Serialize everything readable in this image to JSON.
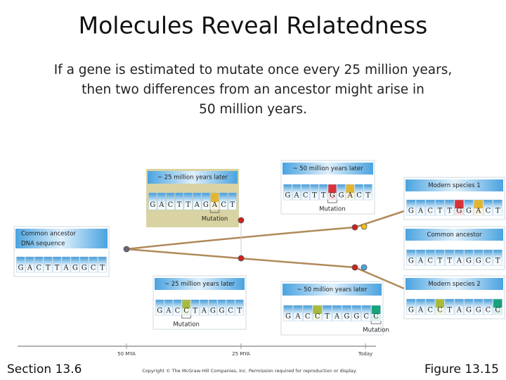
{
  "header": {
    "title": "Molecules Reveal Relatedness",
    "subtitle_lines": [
      "If a gene is estimated to mutate once every 25 million years,",
      "then two differences from an ancestor might arise in",
      "50 million years."
    ]
  },
  "panels": [
    {
      "heading": [
        "~ 25 million years later"
      ],
      "sequence": [
        "G",
        "A",
        "C",
        "T",
        "T",
        "A",
        "G",
        "A",
        "C",
        "T"
      ],
      "mutation": "Mutation"
    },
    {
      "heading": [
        "~ 50 million years later"
      ],
      "sequence": [
        "G",
        "A",
        "C",
        "T",
        "T",
        "G",
        "G",
        "A",
        "C",
        "T"
      ],
      "mutation": "Mutation"
    },
    {
      "heading": [
        "Modern species 1"
      ],
      "sequence": [
        "G",
        "A",
        "C",
        "T",
        "T",
        "G",
        "G",
        "A",
        "C",
        "T"
      ]
    },
    {
      "heading": [
        "Common ancestor"
      ],
      "sequence": [
        "G",
        "A",
        "C",
        "T",
        "T",
        "A",
        "G",
        "G",
        "C",
        "T"
      ]
    },
    {
      "heading": [
        "Modern species 2"
      ],
      "sequence": [
        "G",
        "A",
        "C",
        "C",
        "T",
        "A",
        "G",
        "G",
        "C",
        "C"
      ]
    },
    {
      "heading": [
        "Common ancestor",
        "DNA sequence"
      ],
      "sequence": [
        "G",
        "A",
        "C",
        "T",
        "T",
        "A",
        "G",
        "G",
        "C",
        "T"
      ]
    },
    {
      "heading": [
        "~ 25 million years later"
      ],
      "sequence": [
        "G",
        "A",
        "C",
        "C",
        "T",
        "A",
        "G",
        "G",
        "C",
        "T"
      ],
      "mutation": "Mutation"
    },
    {
      "heading": [
        "~ 50 million years later"
      ],
      "sequence": [
        "G",
        "A",
        "C",
        "C",
        "T",
        "A",
        "G",
        "G",
        "C",
        "C"
      ],
      "mutation": "Mutation"
    }
  ],
  "timeline": {
    "labels": [
      "50 MYA",
      "25 MYA",
      "Today"
    ]
  },
  "footer": {
    "section": "Section 13.6",
    "copyright": "Copyright © The McGraw-Hill Companies, Inc. Permission required for reproduction or display.",
    "figure": "Figure 13.15"
  }
}
